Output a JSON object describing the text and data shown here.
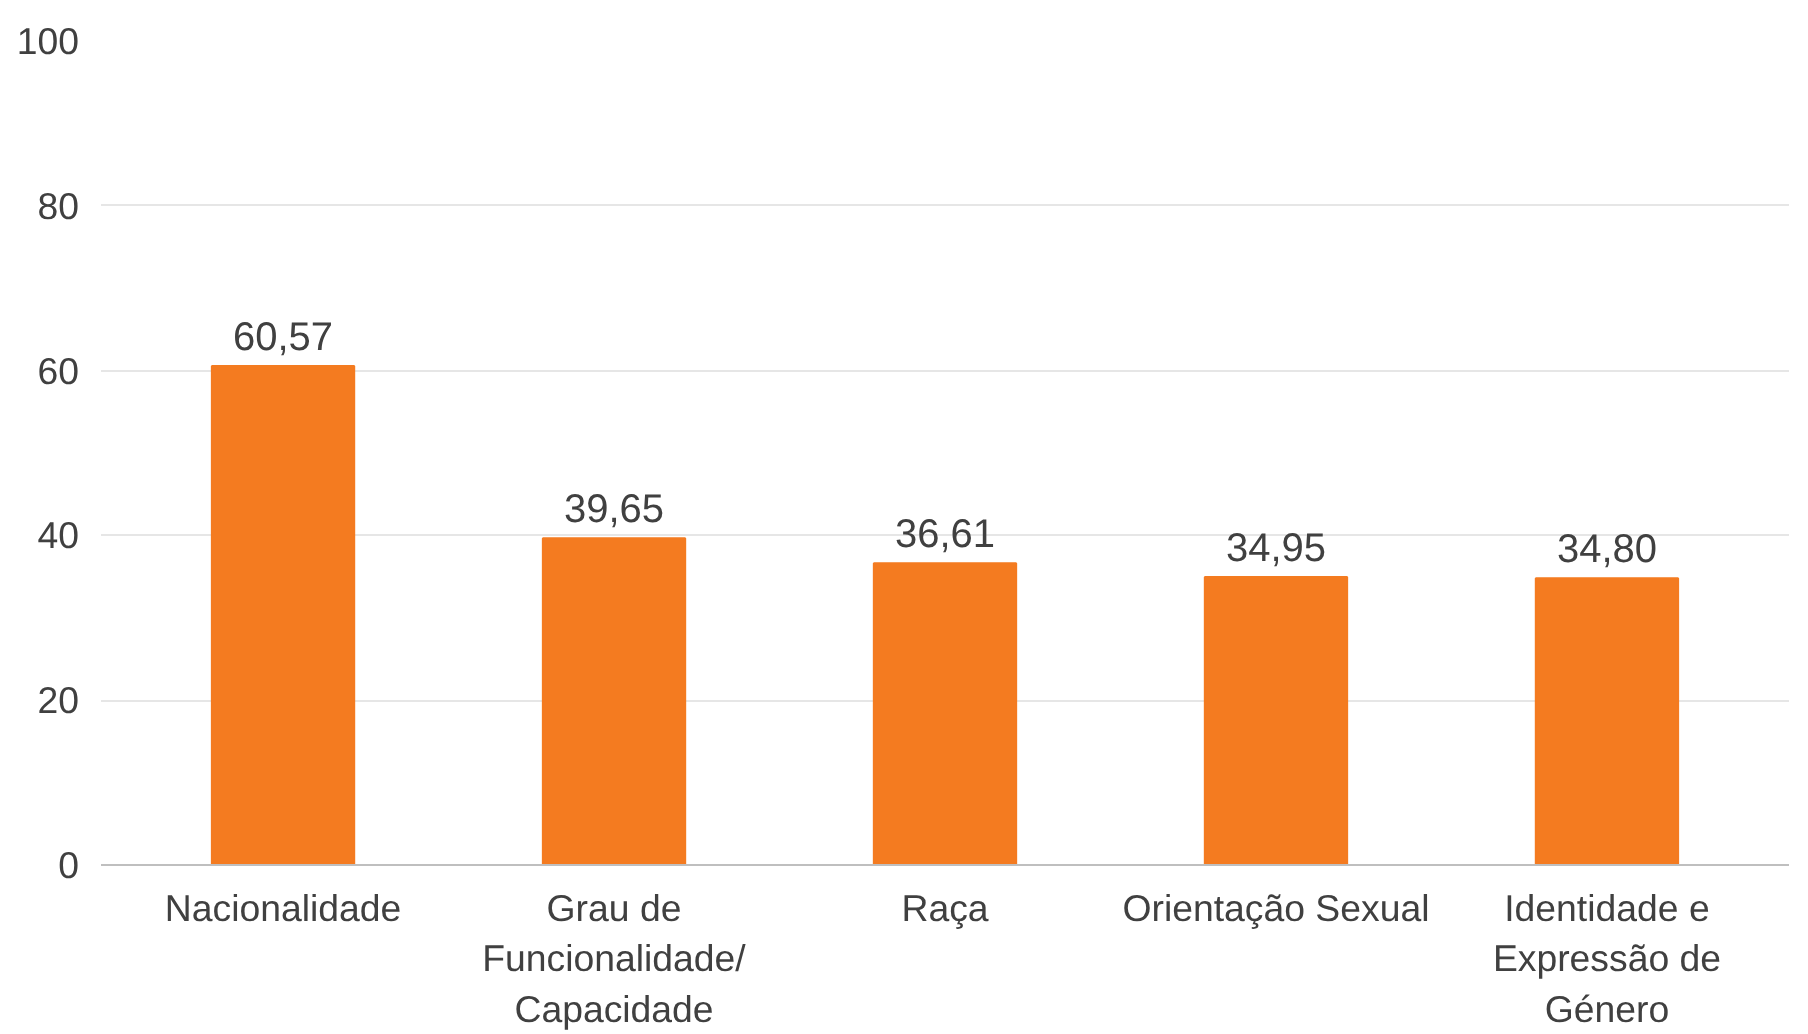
{
  "chart_data": {
    "type": "bar",
    "categories": [
      "Nacionalidade",
      "Grau de Funcionalidade/ Capacidade",
      "Raça",
      "Orientação Sexual",
      "Identidade e Expressão de Género"
    ],
    "values": [
      60.57,
      39.65,
      36.61,
      34.95,
      34.8
    ],
    "value_labels": [
      "60,57",
      "39,65",
      "36,61",
      "34,95",
      "34,80"
    ],
    "color": "#f47b20",
    "ylim": [
      0,
      100
    ],
    "yticks": [
      0,
      20,
      40,
      60,
      80,
      100
    ],
    "grid": "y"
  }
}
